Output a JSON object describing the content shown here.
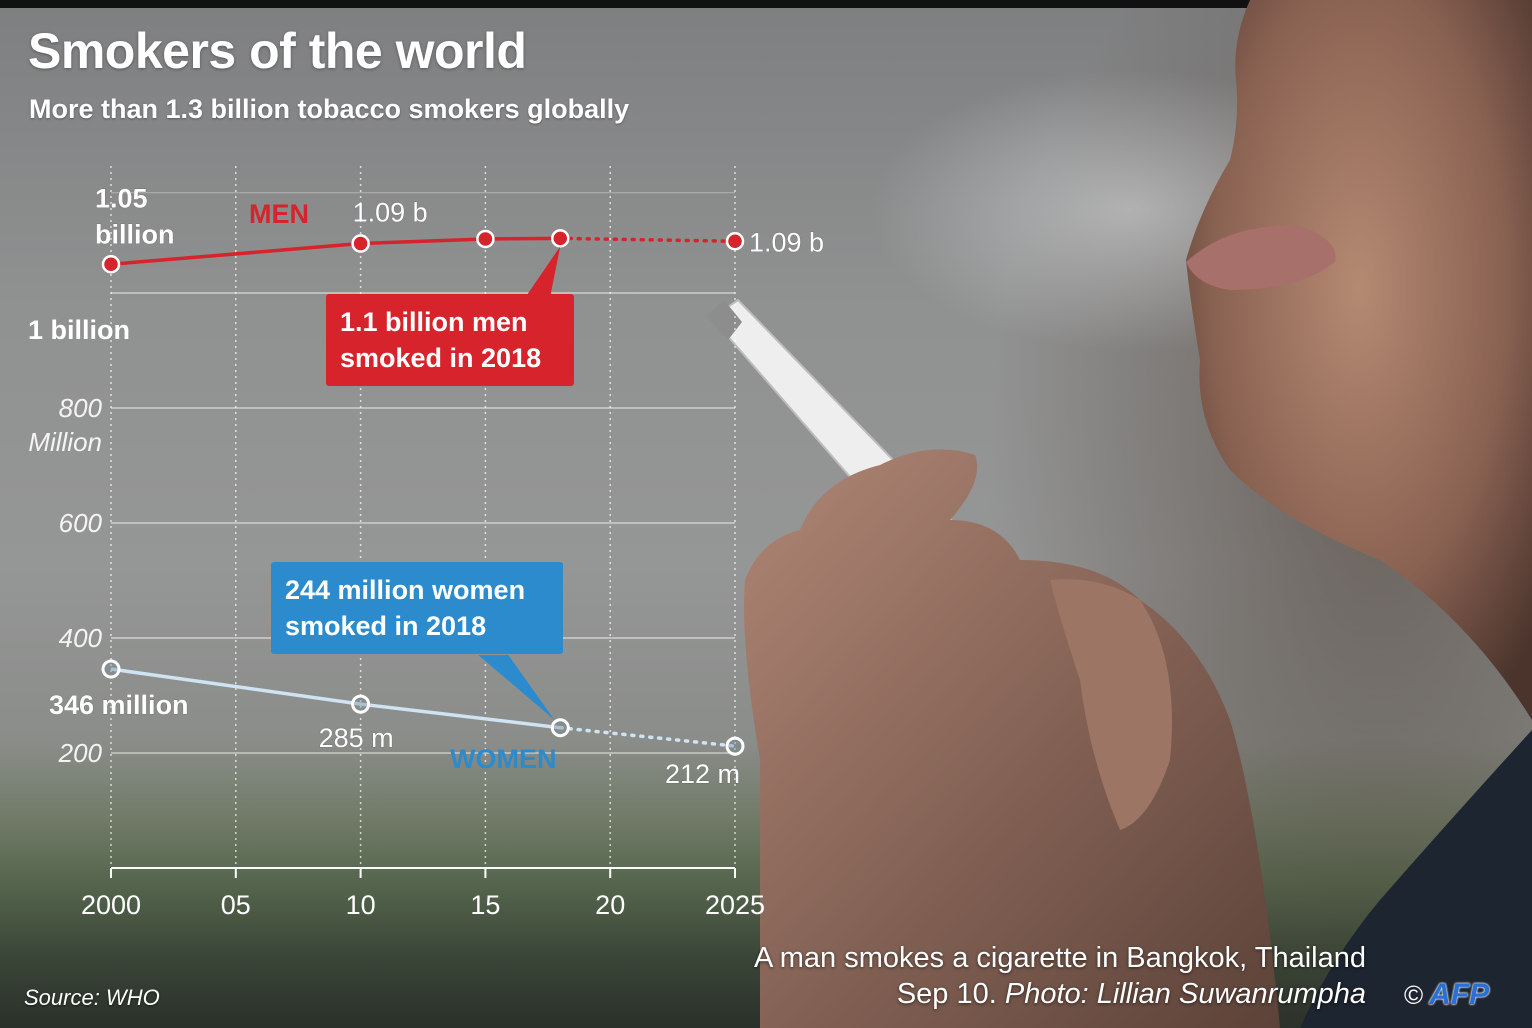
{
  "header": {
    "title": "Smokers of the world",
    "subtitle": "More than 1.3 billion tobacco smokers globally"
  },
  "colors": {
    "men": "#d7232b",
    "women_line": "#cfe3f2",
    "women_label": "#2b8bcd",
    "callout_women": "#2b8bcd",
    "text": "#ffffff"
  },
  "chart_data": {
    "type": "line",
    "title": "Smokers of the world",
    "subtitle": "More than 1.3 billion tobacco smokers globally",
    "xlabel": "",
    "ylabel": "",
    "x_ticks": [
      "2000",
      "05",
      "10",
      "15",
      "20",
      "2025"
    ],
    "x_tick_values": [
      2000,
      2005,
      2010,
      2015,
      2020,
      2025
    ],
    "y_ticks": [
      {
        "value": 200,
        "label": "200"
      },
      {
        "value": 400,
        "label": "400"
      },
      {
        "value": 600,
        "label": "600"
      },
      {
        "value": 800,
        "label": "800"
      }
    ],
    "y_unit_label": "Million",
    "y_extra_label": {
      "value": 1000,
      "label": "1 billion"
    },
    "xlim": [
      2000,
      2025
    ],
    "ylim": [
      0,
      1150
    ],
    "grid": true,
    "series": [
      {
        "name": "MEN",
        "x": [
          2000,
          2010,
          2015,
          2018,
          2025
        ],
        "values": [
          1050,
          1086,
          1094,
          1095,
          1090
        ],
        "projected_from_index": 3,
        "point_labels": [
          {
            "index": 0,
            "lines": [
              "1.05",
              "billion"
            ]
          },
          {
            "index": 1,
            "lines": [
              "1.09 b"
            ]
          },
          {
            "index": 4,
            "lines": [
              "1.09 b"
            ]
          }
        ],
        "callout": [
          "1.1 billion men",
          "smoked in 2018"
        ],
        "callout_index": 3
      },
      {
        "name": "WOMEN",
        "x": [
          2000,
          2010,
          2018,
          2025
        ],
        "values": [
          346,
          285,
          244,
          212
        ],
        "projected_from_index": 2,
        "point_labels": [
          {
            "index": 0,
            "lines": [
              "346 million"
            ]
          },
          {
            "index": 1,
            "lines": [
              "285 m"
            ]
          },
          {
            "index": 3,
            "lines": [
              "212 m"
            ]
          }
        ],
        "callout": [
          "244 million women",
          "smoked in 2018"
        ],
        "callout_index": 2
      }
    ]
  },
  "caption": {
    "line1": "A man smokes a cigarette in Bangkok, Thailand",
    "line2_plain": "Sep 10.",
    "line2_italic": "Photo: Lillian Suwanrumpha"
  },
  "source": "Source: WHO",
  "credit": {
    "copyright": "©",
    "agency": "AFP"
  }
}
